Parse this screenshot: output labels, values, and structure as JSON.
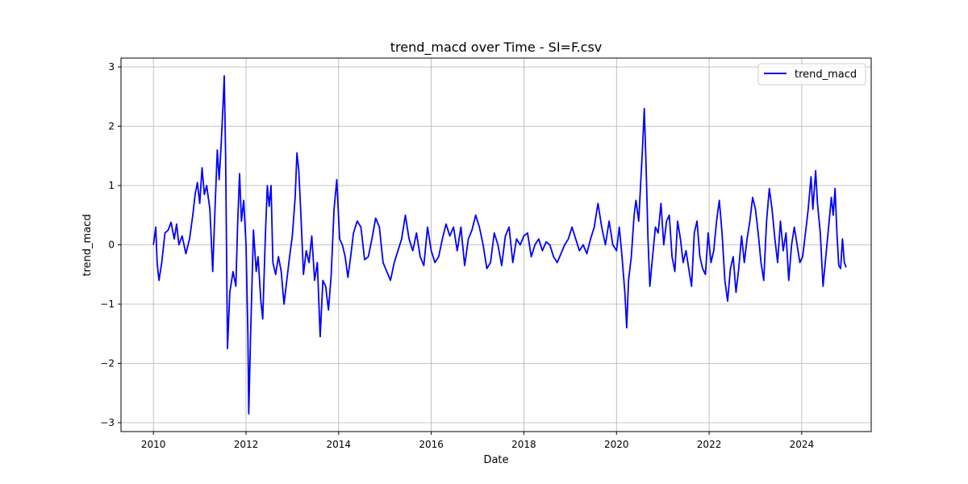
{
  "chart_data": {
    "type": "line",
    "title": "trend_macd over Time - SI=F.csv",
    "xlabel": "Date",
    "ylabel": "trend_macd",
    "xlim": [
      2009.3,
      2025.5
    ],
    "ylim": [
      -3.15,
      3.15
    ],
    "x_ticks": [
      2010,
      2012,
      2014,
      2016,
      2018,
      2020,
      2022,
      2024
    ],
    "x_tick_labels": [
      "2010",
      "2012",
      "2014",
      "2016",
      "2018",
      "2020",
      "2022",
      "2024"
    ],
    "y_ticks": [
      -3,
      -2,
      -1,
      0,
      1,
      2,
      3
    ],
    "y_tick_labels": [
      "−3",
      "−2",
      "−1",
      "0",
      "1",
      "2",
      "3"
    ],
    "grid": true,
    "legend_position": "top-right",
    "series": [
      {
        "name": "trend_macd",
        "color": "#0000ff",
        "points": [
          [
            2010.0,
            0.0
          ],
          [
            2010.05,
            0.3
          ],
          [
            2010.08,
            -0.3
          ],
          [
            2010.12,
            -0.6
          ],
          [
            2010.18,
            -0.3
          ],
          [
            2010.25,
            0.2
          ],
          [
            2010.32,
            0.25
          ],
          [
            2010.38,
            0.38
          ],
          [
            2010.45,
            0.1
          ],
          [
            2010.5,
            0.35
          ],
          [
            2010.55,
            0.0
          ],
          [
            2010.62,
            0.15
          ],
          [
            2010.7,
            -0.15
          ],
          [
            2010.78,
            0.1
          ],
          [
            2010.85,
            0.5
          ],
          [
            2010.9,
            0.85
          ],
          [
            2010.95,
            1.05
          ],
          [
            2011.0,
            0.7
          ],
          [
            2011.05,
            1.3
          ],
          [
            2011.1,
            0.85
          ],
          [
            2011.15,
            1.0
          ],
          [
            2011.22,
            0.6
          ],
          [
            2011.28,
            -0.45
          ],
          [
            2011.33,
            0.6
          ],
          [
            2011.38,
            1.6
          ],
          [
            2011.42,
            1.1
          ],
          [
            2011.46,
            1.65
          ],
          [
            2011.5,
            2.3
          ],
          [
            2011.53,
            2.85
          ],
          [
            2011.56,
            1.5
          ],
          [
            2011.6,
            -1.75
          ],
          [
            2011.65,
            -0.8
          ],
          [
            2011.72,
            -0.45
          ],
          [
            2011.78,
            -0.7
          ],
          [
            2011.82,
            0.4
          ],
          [
            2011.86,
            1.2
          ],
          [
            2011.9,
            0.4
          ],
          [
            2011.95,
            0.75
          ],
          [
            2012.0,
            0.0
          ],
          [
            2012.04,
            -1.5
          ],
          [
            2012.06,
            -2.85
          ],
          [
            2012.1,
            -1.5
          ],
          [
            2012.16,
            0.25
          ],
          [
            2012.22,
            -0.45
          ],
          [
            2012.26,
            -0.2
          ],
          [
            2012.32,
            -0.95
          ],
          [
            2012.36,
            -1.25
          ],
          [
            2012.42,
            0.2
          ],
          [
            2012.46,
            1.0
          ],
          [
            2012.5,
            0.65
          ],
          [
            2012.54,
            1.0
          ],
          [
            2012.58,
            -0.3
          ],
          [
            2012.64,
            -0.5
          ],
          [
            2012.7,
            -0.2
          ],
          [
            2012.76,
            -0.45
          ],
          [
            2012.82,
            -1.0
          ],
          [
            2012.88,
            -0.6
          ],
          [
            2012.94,
            -0.2
          ],
          [
            2013.0,
            0.15
          ],
          [
            2013.06,
            0.8
          ],
          [
            2013.1,
            1.55
          ],
          [
            2013.14,
            1.25
          ],
          [
            2013.18,
            0.6
          ],
          [
            2013.24,
            -0.5
          ],
          [
            2013.3,
            -0.1
          ],
          [
            2013.36,
            -0.3
          ],
          [
            2013.42,
            0.15
          ],
          [
            2013.48,
            -0.6
          ],
          [
            2013.54,
            -0.3
          ],
          [
            2013.6,
            -1.55
          ],
          [
            2013.66,
            -0.6
          ],
          [
            2013.72,
            -0.7
          ],
          [
            2013.78,
            -1.1
          ],
          [
            2013.84,
            -0.5
          ],
          [
            2013.9,
            0.6
          ],
          [
            2013.96,
            1.1
          ],
          [
            2014.02,
            0.1
          ],
          [
            2014.08,
            0.0
          ],
          [
            2014.14,
            -0.2
          ],
          [
            2014.2,
            -0.55
          ],
          [
            2014.26,
            -0.2
          ],
          [
            2014.32,
            0.2
          ],
          [
            2014.4,
            0.4
          ],
          [
            2014.48,
            0.3
          ],
          [
            2014.56,
            -0.25
          ],
          [
            2014.64,
            -0.2
          ],
          [
            2014.72,
            0.1
          ],
          [
            2014.8,
            0.45
          ],
          [
            2014.88,
            0.3
          ],
          [
            2014.96,
            -0.3
          ],
          [
            2015.04,
            -0.45
          ],
          [
            2015.12,
            -0.6
          ],
          [
            2015.2,
            -0.3
          ],
          [
            2015.28,
            -0.1
          ],
          [
            2015.36,
            0.1
          ],
          [
            2015.44,
            0.5
          ],
          [
            2015.52,
            0.1
          ],
          [
            2015.6,
            -0.1
          ],
          [
            2015.68,
            0.2
          ],
          [
            2015.76,
            -0.2
          ],
          [
            2015.84,
            -0.35
          ],
          [
            2015.92,
            0.3
          ],
          [
            2016.0,
            -0.1
          ],
          [
            2016.08,
            -0.3
          ],
          [
            2016.16,
            -0.2
          ],
          [
            2016.24,
            0.1
          ],
          [
            2016.32,
            0.35
          ],
          [
            2016.4,
            0.15
          ],
          [
            2016.48,
            0.3
          ],
          [
            2016.56,
            -0.1
          ],
          [
            2016.64,
            0.3
          ],
          [
            2016.72,
            -0.35
          ],
          [
            2016.8,
            0.1
          ],
          [
            2016.88,
            0.25
          ],
          [
            2016.96,
            0.5
          ],
          [
            2017.04,
            0.3
          ],
          [
            2017.12,
            0.0
          ],
          [
            2017.2,
            -0.4
          ],
          [
            2017.28,
            -0.3
          ],
          [
            2017.36,
            0.2
          ],
          [
            2017.44,
            0.0
          ],
          [
            2017.52,
            -0.35
          ],
          [
            2017.6,
            0.15
          ],
          [
            2017.68,
            0.3
          ],
          [
            2017.76,
            -0.3
          ],
          [
            2017.84,
            0.1
          ],
          [
            2017.92,
            0.0
          ],
          [
            2018.0,
            0.15
          ],
          [
            2018.08,
            0.2
          ],
          [
            2018.16,
            -0.2
          ],
          [
            2018.24,
            0.0
          ],
          [
            2018.32,
            0.1
          ],
          [
            2018.4,
            -0.1
          ],
          [
            2018.48,
            0.05
          ],
          [
            2018.56,
            0.0
          ],
          [
            2018.64,
            -0.2
          ],
          [
            2018.72,
            -0.3
          ],
          [
            2018.8,
            -0.15
          ],
          [
            2018.88,
            0.0
          ],
          [
            2018.96,
            0.1
          ],
          [
            2019.04,
            0.3
          ],
          [
            2019.12,
            0.1
          ],
          [
            2019.2,
            -0.1
          ],
          [
            2019.28,
            0.0
          ],
          [
            2019.36,
            -0.15
          ],
          [
            2019.44,
            0.1
          ],
          [
            2019.52,
            0.3
          ],
          [
            2019.6,
            0.7
          ],
          [
            2019.68,
            0.3
          ],
          [
            2019.76,
            0.0
          ],
          [
            2019.84,
            0.4
          ],
          [
            2019.92,
            0.0
          ],
          [
            2020.0,
            -0.1
          ],
          [
            2020.06,
            0.3
          ],
          [
            2020.12,
            -0.2
          ],
          [
            2020.18,
            -0.8
          ],
          [
            2020.22,
            -1.4
          ],
          [
            2020.26,
            -0.6
          ],
          [
            2020.32,
            -0.2
          ],
          [
            2020.38,
            0.5
          ],
          [
            2020.42,
            0.75
          ],
          [
            2020.48,
            0.4
          ],
          [
            2020.52,
            1.0
          ],
          [
            2020.56,
            1.6
          ],
          [
            2020.6,
            2.3
          ],
          [
            2020.64,
            1.3
          ],
          [
            2020.68,
            0.1
          ],
          [
            2020.72,
            -0.7
          ],
          [
            2020.78,
            -0.2
          ],
          [
            2020.84,
            0.3
          ],
          [
            2020.9,
            0.2
          ],
          [
            2020.96,
            0.7
          ],
          [
            2021.02,
            0.0
          ],
          [
            2021.08,
            0.4
          ],
          [
            2021.14,
            0.5
          ],
          [
            2021.2,
            -0.2
          ],
          [
            2021.26,
            -0.45
          ],
          [
            2021.32,
            0.4
          ],
          [
            2021.38,
            0.1
          ],
          [
            2021.44,
            -0.3
          ],
          [
            2021.5,
            -0.1
          ],
          [
            2021.56,
            -0.4
          ],
          [
            2021.62,
            -0.7
          ],
          [
            2021.68,
            0.2
          ],
          [
            2021.74,
            0.4
          ],
          [
            2021.8,
            -0.2
          ],
          [
            2021.86,
            -0.4
          ],
          [
            2021.92,
            -0.5
          ],
          [
            2021.98,
            0.2
          ],
          [
            2022.04,
            -0.3
          ],
          [
            2022.1,
            -0.1
          ],
          [
            2022.16,
            0.4
          ],
          [
            2022.22,
            0.75
          ],
          [
            2022.28,
            0.2
          ],
          [
            2022.34,
            -0.6
          ],
          [
            2022.4,
            -0.95
          ],
          [
            2022.46,
            -0.4
          ],
          [
            2022.52,
            -0.2
          ],
          [
            2022.58,
            -0.8
          ],
          [
            2022.64,
            -0.4
          ],
          [
            2022.7,
            0.15
          ],
          [
            2022.76,
            -0.3
          ],
          [
            2022.82,
            0.1
          ],
          [
            2022.88,
            0.4
          ],
          [
            2022.94,
            0.8
          ],
          [
            2023.0,
            0.6
          ],
          [
            2023.06,
            0.2
          ],
          [
            2023.12,
            -0.3
          ],
          [
            2023.18,
            -0.6
          ],
          [
            2023.24,
            0.4
          ],
          [
            2023.3,
            0.95
          ],
          [
            2023.36,
            0.6
          ],
          [
            2023.42,
            0.1
          ],
          [
            2023.48,
            -0.3
          ],
          [
            2023.54,
            0.4
          ],
          [
            2023.6,
            -0.1
          ],
          [
            2023.66,
            0.2
          ],
          [
            2023.72,
            -0.6
          ],
          [
            2023.78,
            0.0
          ],
          [
            2023.84,
            0.3
          ],
          [
            2023.9,
            0.0
          ],
          [
            2023.96,
            -0.3
          ],
          [
            2024.02,
            -0.2
          ],
          [
            2024.08,
            0.2
          ],
          [
            2024.14,
            0.6
          ],
          [
            2024.2,
            1.15
          ],
          [
            2024.24,
            0.6
          ],
          [
            2024.3,
            1.25
          ],
          [
            2024.34,
            0.7
          ],
          [
            2024.4,
            0.2
          ],
          [
            2024.46,
            -0.7
          ],
          [
            2024.52,
            -0.2
          ],
          [
            2024.58,
            0.3
          ],
          [
            2024.64,
            0.8
          ],
          [
            2024.68,
            0.5
          ],
          [
            2024.72,
            0.95
          ],
          [
            2024.76,
            0.2
          ],
          [
            2024.8,
            -0.35
          ],
          [
            2024.84,
            -0.4
          ],
          [
            2024.88,
            0.1
          ],
          [
            2024.92,
            -0.3
          ],
          [
            2024.96,
            -0.38
          ]
        ]
      }
    ]
  }
}
